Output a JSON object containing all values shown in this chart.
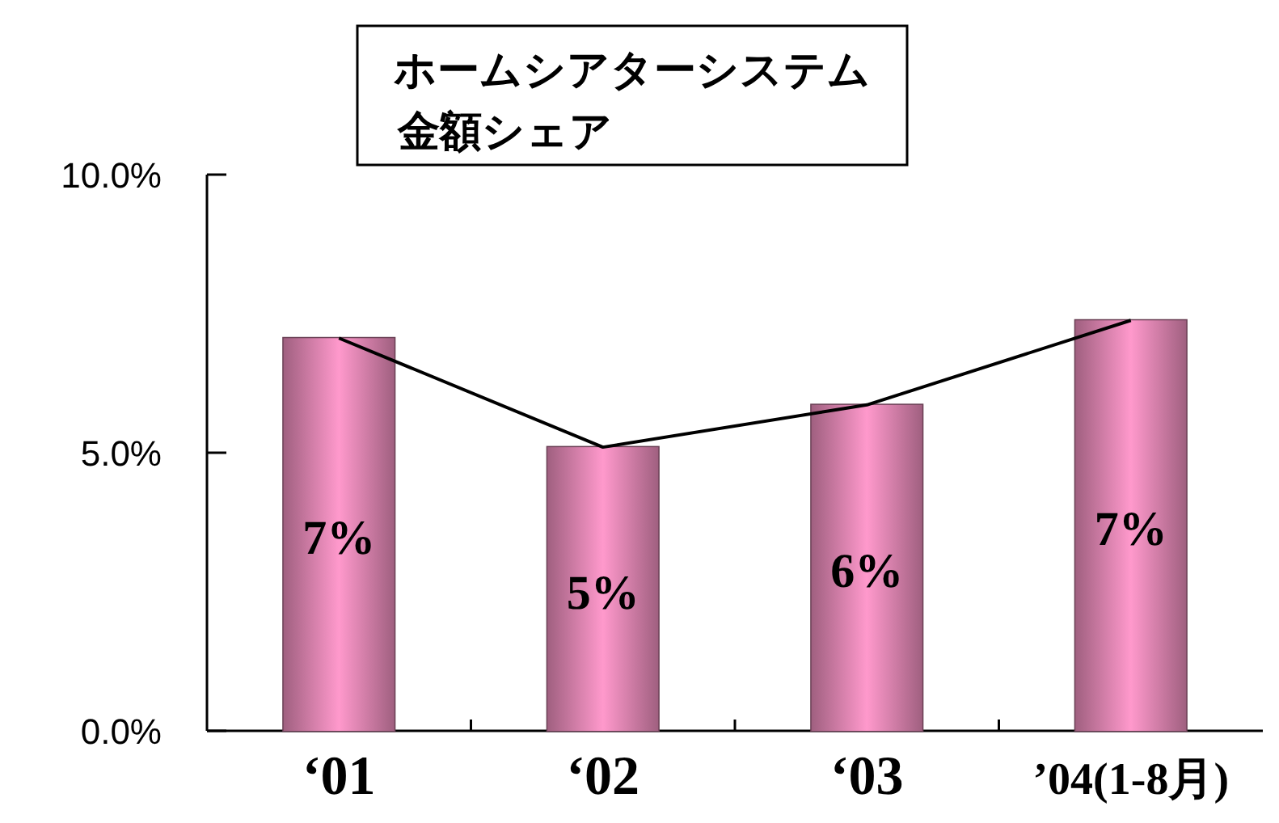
{
  "chart_data": {
    "type": "bar",
    "title": "ホームシアターシステム",
    "subtitle": "金額シェア",
    "categories": [
      "‘01",
      "‘02",
      "‘03",
      "’04(1-8月)"
    ],
    "series": [
      {
        "color": "#ff99cc",
        "values": [
          7.06,
          5.1,
          5.86,
          7.38
        ],
        "value_labels": [
          "7%",
          "5%",
          "6%",
          "7%"
        ]
      },
      {
        "type": "line",
        "color": "#000000",
        "values": [
          7.06,
          5.1,
          5.86,
          7.38
        ]
      }
    ],
    "ylim": [
      0,
      10
    ],
    "yticks": [
      {
        "value": 0,
        "label": "0.0%"
      },
      {
        "value": 5,
        "label": "5.0%"
      },
      {
        "value": 10,
        "label": "10.0%"
      }
    ],
    "grid": false,
    "marker": "none"
  }
}
